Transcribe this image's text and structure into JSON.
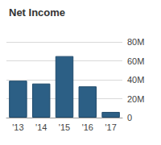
{
  "chart_data": {
    "type": "bar",
    "title": "Net Income",
    "categories": [
      "'13",
      "'14",
      "'15",
      "'16",
      "'17"
    ],
    "values": [
      39,
      36,
      65,
      33,
      6
    ],
    "color": "#2c5f85",
    "ylim": [
      0,
      80
    ],
    "yticks": [
      0,
      {
        "value": 20,
        "label": "20M"
      },
      {
        "value": 40,
        "label": "40M"
      },
      {
        "value": 60,
        "label": "60M"
      },
      {
        "value": 80,
        "label": "80M"
      }
    ],
    "grid": true
  }
}
